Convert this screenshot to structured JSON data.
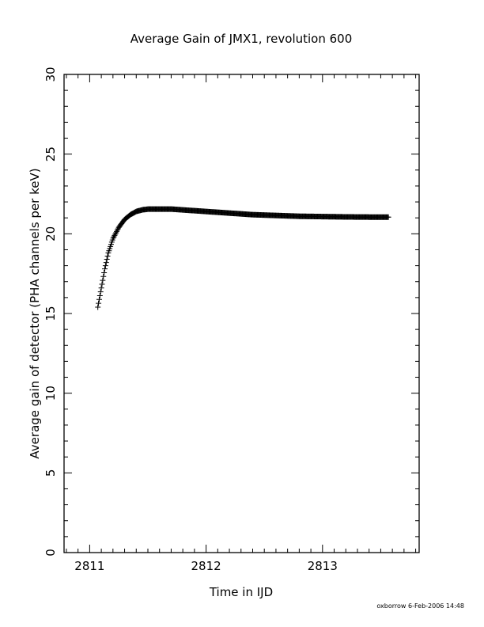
{
  "chart_data": {
    "type": "scatter",
    "title": "Average Gain of JMX1, revolution 600",
    "xlabel": "Time in IJD",
    "ylabel": "Average gain of detector (PHA channels per keV)",
    "xlim": [
      2810.78,
      2813.83
    ],
    "ylim": [
      0,
      30
    ],
    "x_ticks": [
      "2811",
      "2812",
      "2813"
    ],
    "y_ticks": [
      "0",
      "5",
      "10",
      "15",
      "20",
      "25",
      "30"
    ],
    "x_tick_values": [
      2811,
      2812,
      2813
    ],
    "y_tick_values": [
      0,
      5,
      10,
      15,
      20,
      25,
      30
    ],
    "marker": "plus",
    "grid": false,
    "footer": "oxborrow  6-Feb-2006 14:48",
    "series": [
      {
        "x": [
          2811.07,
          2811.1,
          2811.13,
          2811.16,
          2811.2,
          2811.25,
          2811.3,
          2811.35,
          2811.4,
          2811.45,
          2811.5,
          2811.6,
          2811.7,
          2811.8,
          2811.9,
          2812.0,
          2812.2,
          2812.4,
          2812.6,
          2812.8,
          2813.0,
          2813.2,
          2813.4,
          2813.57
        ],
        "y": [
          15.4,
          16.6,
          17.8,
          18.8,
          19.7,
          20.4,
          20.9,
          21.2,
          21.4,
          21.5,
          21.55,
          21.55,
          21.55,
          21.5,
          21.45,
          21.4,
          21.3,
          21.2,
          21.15,
          21.1,
          21.08,
          21.06,
          21.05,
          21.05
        ]
      }
    ]
  }
}
